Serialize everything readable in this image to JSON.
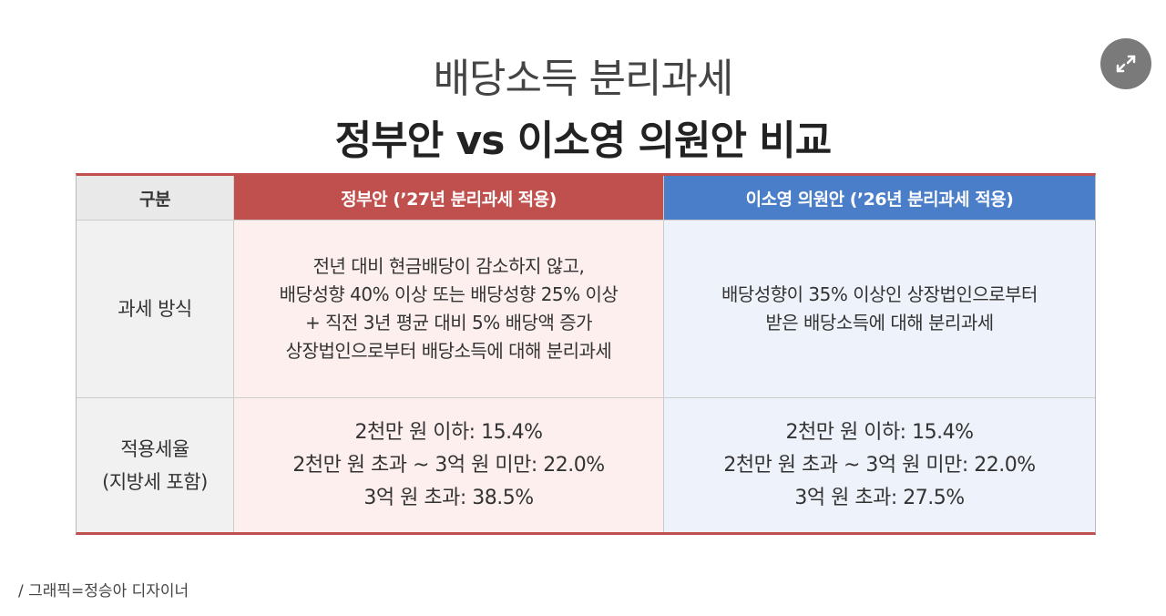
{
  "title": {
    "line1": "배당소득 분리과세",
    "line2": "정부안 vs 이소영 의원안 비교"
  },
  "table": {
    "header": [
      "구분",
      "정부안 (’27년 분리과세 적용)",
      "이소영 의원안 (’26년 분리과세 적용)"
    ],
    "rows": [
      [
        [
          "과세 방식"
        ],
        [
          "전년 대비 현금배당이 감소하지 않고,",
          "배당성향 40% 이상 또는 배당성향 25% 이상",
          "+ 직전 3년 평균 대비 5% 배당액 증가",
          "상장법인으로부터 배당소득에 대해 분리과세"
        ],
        [
          "배당성향이 35% 이상인 상장법인으로부터",
          "받은 배당소득에 대해 분리과세"
        ]
      ],
      [
        [
          "적용세율",
          "(지방세 포함)"
        ],
        [
          "2천만 원 이하: 15.4%",
          "2천만 원 초과 ~ 3억 원 미만: 22.0%",
          "3억 원 초과: 38.5%"
        ],
        [
          "2천만 원 이하: 15.4%",
          "2천만 원 초과 ~ 3억 원 미만: 22.0%",
          "3억 원 초과: 27.5%"
        ]
      ]
    ]
  },
  "caption": "/ 그래픽=정승아 디자이너"
}
